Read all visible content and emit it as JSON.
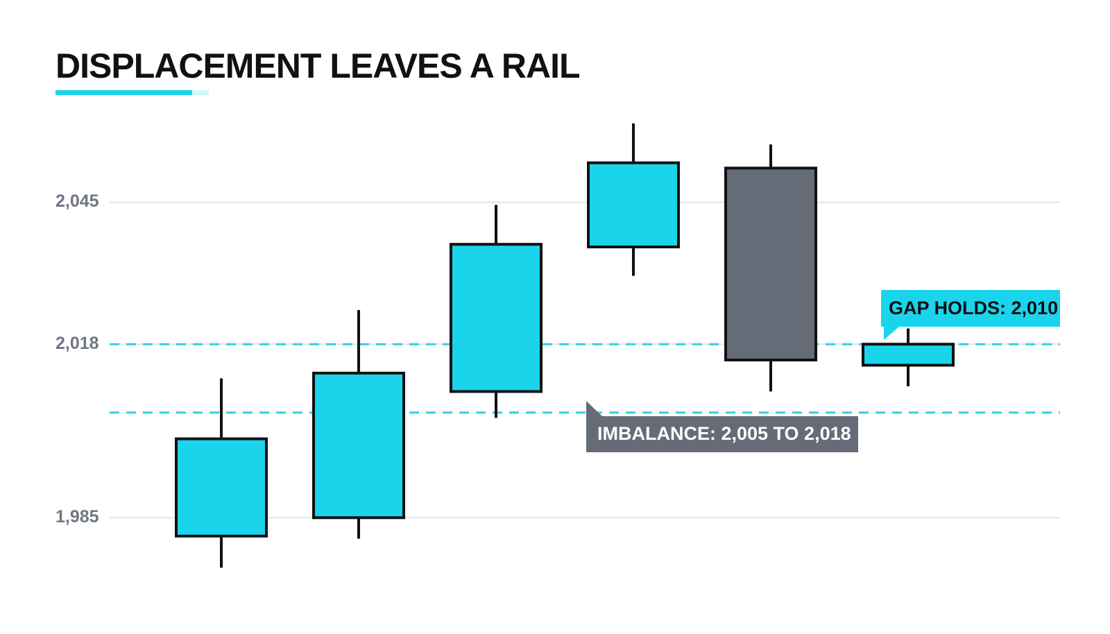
{
  "chart_data": {
    "type": "candlestick",
    "title": "DISPLACEMENT LEAVES A RAIL",
    "series": [
      {
        "up_color": "#1ad4ec",
        "down_color": "#666c77",
        "open": [
          1981.5,
          1985,
          2009,
          2036.5,
          2051.5,
          2014
        ],
        "high": [
          2011.5,
          2024.5,
          2044.5,
          2060,
          2056,
          2021
        ],
        "low": [
          1975.5,
          1981,
          2004,
          2031,
          2009,
          2010
        ],
        "close": [
          2000,
          2012.5,
          2037,
          2052.5,
          2015,
          2018
        ]
      }
    ],
    "ylim": [
      1970,
      2065
    ],
    "yticks": [
      {
        "value": 1985,
        "label": "1,985"
      },
      {
        "value": 2018,
        "label": "2,018"
      },
      {
        "value": 2045,
        "label": "2,045"
      }
    ],
    "grid": true,
    "zone": [
      2005,
      2018
    ],
    "zone_color": "#2fd0e4",
    "annotations": [
      "IMBALANCE: 2,005 TO 2,018",
      "GAP HOLDS: 2,010"
    ]
  }
}
